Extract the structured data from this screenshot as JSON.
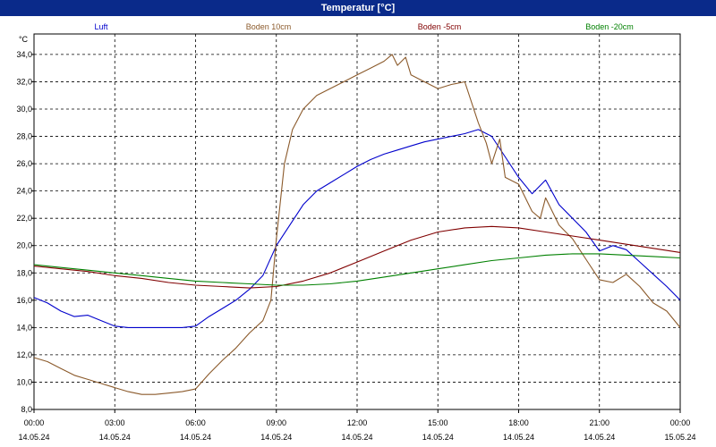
{
  "window": {
    "title": "Temperatur [°C]"
  },
  "chart_data": {
    "type": "line",
    "title": "Temperatur [°C]",
    "ylabel": "°C",
    "xlabel": "",
    "ylim": [
      8.0,
      35.5
    ],
    "xlim": [
      0,
      24
    ],
    "grid": true,
    "legend_placement": "top",
    "y_ticks": [
      "8,0",
      "10,0",
      "12,0",
      "14,0",
      "16,0",
      "18,0",
      "20,0",
      "22,0",
      "24,0",
      "26,0",
      "28,0",
      "30,0",
      "32,0",
      "34,0"
    ],
    "y_tick_values": [
      8,
      10,
      12,
      14,
      16,
      18,
      20,
      22,
      24,
      26,
      28,
      30,
      32,
      34
    ],
    "x_ticks": [
      {
        "time": "00:00",
        "date": "14.05.24"
      },
      {
        "time": "03:00",
        "date": "14.05.24"
      },
      {
        "time": "06:00",
        "date": "14.05.24"
      },
      {
        "time": "09:00",
        "date": "14.05.24"
      },
      {
        "time": "12:00",
        "date": "14.05.24"
      },
      {
        "time": "15:00",
        "date": "14.05.24"
      },
      {
        "time": "18:00",
        "date": "14.05.24"
      },
      {
        "time": "21:00",
        "date": "14.05.24"
      },
      {
        "time": "00:00",
        "date": "15.05.24"
      }
    ],
    "x_tick_hours": [
      0,
      3,
      6,
      9,
      12,
      15,
      18,
      21,
      24
    ],
    "series": [
      {
        "name": "Luft",
        "color": "#0000cc",
        "x": [
          0,
          0.5,
          1,
          1.5,
          2,
          2.5,
          3,
          3.5,
          4,
          4.5,
          5,
          5.5,
          6,
          6.5,
          7,
          7.5,
          8,
          8.5,
          9,
          9.5,
          10,
          10.5,
          11,
          11.5,
          12,
          12.5,
          13,
          13.5,
          14,
          14.5,
          15,
          15.5,
          16,
          16.5,
          17,
          17.5,
          18,
          18.5,
          19,
          19.5,
          20,
          20.5,
          21,
          21.5,
          22,
          22.5,
          23,
          23.5,
          24
        ],
        "y": [
          16.2,
          15.8,
          15.2,
          14.8,
          14.9,
          14.5,
          14.1,
          14.0,
          14.0,
          14.0,
          14.0,
          14.0,
          14.1,
          14.8,
          15.4,
          16.0,
          16.8,
          17.8,
          20.0,
          21.5,
          23.0,
          24.0,
          24.6,
          25.2,
          25.8,
          26.3,
          26.7,
          27.0,
          27.3,
          27.6,
          27.8,
          28.0,
          28.2,
          28.5,
          28.0,
          26.5,
          25.0,
          23.8,
          24.8,
          23.0,
          22.0,
          21.0,
          19.6,
          20.0,
          19.7,
          18.8,
          17.9,
          17.0,
          16.0
        ]
      },
      {
        "name": "Boden 10cm",
        "color": "#8b5a2b",
        "x": [
          0,
          0.5,
          1,
          1.5,
          2,
          2.5,
          3,
          3.5,
          4,
          4.5,
          5,
          5.5,
          6,
          6.5,
          7,
          7.5,
          8,
          8.5,
          8.8,
          9,
          9.3,
          9.6,
          10,
          10.5,
          11,
          11.5,
          12,
          12.5,
          13,
          13.3,
          13.5,
          13.8,
          14,
          14.5,
          15,
          15.5,
          16,
          16.5,
          16.8,
          17,
          17.3,
          17.5,
          18,
          18.5,
          18.8,
          19,
          19.5,
          20,
          20.5,
          21,
          21.5,
          22,
          22.5,
          23,
          23.5,
          24
        ],
        "y": [
          11.8,
          11.5,
          11.0,
          10.5,
          10.2,
          9.9,
          9.6,
          9.3,
          9.1,
          9.1,
          9.2,
          9.3,
          9.5,
          10.6,
          11.6,
          12.5,
          13.6,
          14.5,
          16.0,
          20.5,
          26.0,
          28.5,
          30.0,
          31.0,
          31.5,
          32.0,
          32.5,
          33.0,
          33.5,
          34.0,
          33.2,
          33.8,
          32.5,
          32.0,
          31.5,
          31.8,
          32.0,
          29.0,
          27.5,
          26.0,
          27.8,
          25.0,
          24.5,
          22.5,
          22.0,
          23.5,
          21.5,
          20.5,
          19.0,
          17.5,
          17.3,
          17.9,
          17.0,
          15.8,
          15.2,
          14.0
        ]
      },
      {
        "name": "Boden -5cm",
        "color": "#800000",
        "x": [
          0,
          1,
          2,
          3,
          4,
          5,
          6,
          7,
          8,
          9,
          10,
          11,
          12,
          13,
          14,
          15,
          16,
          17,
          18,
          19,
          20,
          21,
          22,
          23,
          24
        ],
        "y": [
          18.5,
          18.3,
          18.1,
          17.8,
          17.6,
          17.3,
          17.1,
          17.0,
          16.9,
          17.0,
          17.4,
          18.0,
          18.8,
          19.6,
          20.4,
          21.0,
          21.3,
          21.4,
          21.3,
          21.0,
          20.7,
          20.4,
          20.1,
          19.8,
          19.5
        ]
      },
      {
        "name": "Boden -20cm",
        "color": "#008000",
        "x": [
          0,
          1,
          2,
          3,
          4,
          5,
          6,
          7,
          8,
          9,
          10,
          11,
          12,
          13,
          14,
          15,
          16,
          17,
          18,
          19,
          20,
          21,
          22,
          23,
          24
        ],
        "y": [
          18.6,
          18.4,
          18.2,
          18.0,
          17.8,
          17.6,
          17.4,
          17.3,
          17.2,
          17.1,
          17.1,
          17.2,
          17.4,
          17.7,
          18.0,
          18.3,
          18.6,
          18.9,
          19.1,
          19.3,
          19.4,
          19.4,
          19.3,
          19.2,
          19.1
        ]
      }
    ]
  }
}
